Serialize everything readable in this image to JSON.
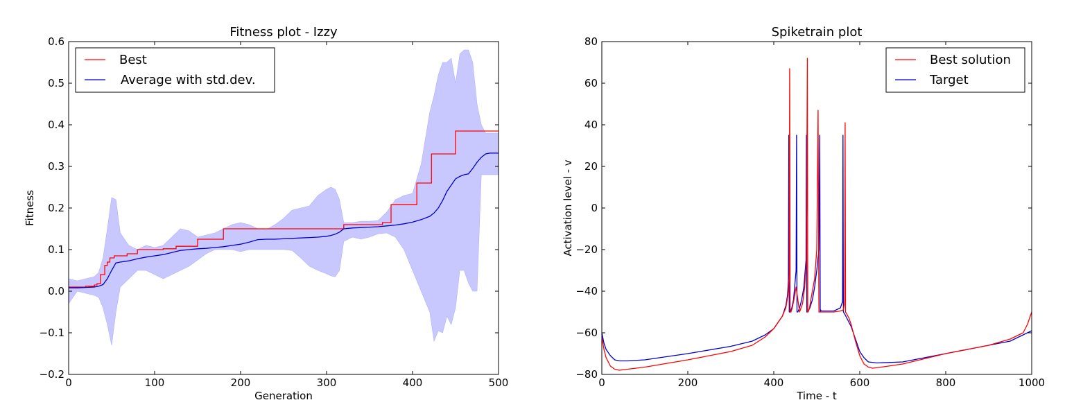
{
  "chart_data": [
    {
      "type": "line",
      "title": "Fitness plot - Izzy",
      "xlabel": "Generation",
      "ylabel": "Fitness",
      "xlim": [
        0,
        500
      ],
      "ylim": [
        -0.2,
        0.6
      ],
      "xticks": [
        "0",
        "100",
        "200",
        "300",
        "400",
        "500"
      ],
      "yticks": [
        "0.6",
        "0.5",
        "0.4",
        "0.3",
        "0.2",
        "0.1",
        "0.0",
        "−0.1",
        "−0.2"
      ],
      "grid": false,
      "legend_position": "top-left",
      "legend": [
        "Best",
        "Average with std.dev."
      ],
      "colors": {
        "best": "#ff0000",
        "average": "#0000cc",
        "band": "#c8c8ff"
      },
      "series": [
        {
          "name": "Best",
          "style": "step",
          "x": [
            0,
            20,
            30,
            33,
            37,
            42,
            45,
            48,
            53,
            57,
            62,
            68,
            72,
            80,
            100,
            110,
            115,
            125,
            130,
            150,
            180,
            320,
            365,
            375,
            405,
            422,
            450,
            500
          ],
          "values": [
            0.01,
            0.012,
            0.015,
            0.018,
            0.04,
            0.062,
            0.07,
            0.08,
            0.085,
            0.085,
            0.085,
            0.09,
            0.09,
            0.1,
            0.1,
            0.102,
            0.102,
            0.108,
            0.108,
            0.125,
            0.15,
            0.16,
            0.165,
            0.208,
            0.26,
            0.33,
            0.385,
            0.385
          ]
        },
        {
          "name": "Average with std.dev.",
          "x": [
            0,
            10,
            20,
            30,
            35,
            40,
            45,
            50,
            55,
            60,
            70,
            80,
            90,
            100,
            110,
            120,
            130,
            140,
            150,
            160,
            170,
            180,
            190,
            200,
            210,
            220,
            230,
            240,
            250,
            260,
            270,
            280,
            290,
            300,
            305,
            310,
            315,
            320,
            330,
            340,
            350,
            360,
            370,
            380,
            390,
            400,
            410,
            420,
            425,
            430,
            435,
            440,
            445,
            450,
            455,
            460,
            465,
            470,
            475,
            480,
            485,
            490,
            500
          ],
          "values": [
            0.008,
            0.008,
            0.009,
            0.01,
            0.012,
            0.016,
            0.03,
            0.05,
            0.068,
            0.07,
            0.073,
            0.078,
            0.082,
            0.085,
            0.088,
            0.093,
            0.098,
            0.1,
            0.102,
            0.103,
            0.105,
            0.107,
            0.11,
            0.113,
            0.118,
            0.124,
            0.125,
            0.125,
            0.126,
            0.127,
            0.128,
            0.129,
            0.13,
            0.132,
            0.134,
            0.137,
            0.142,
            0.15,
            0.152,
            0.153,
            0.154,
            0.155,
            0.157,
            0.159,
            0.162,
            0.166,
            0.172,
            0.18,
            0.188,
            0.2,
            0.218,
            0.24,
            0.255,
            0.27,
            0.276,
            0.28,
            0.282,
            0.295,
            0.31,
            0.322,
            0.33,
            0.332,
            0.332
          ],
          "upper": [
            0.03,
            0.025,
            0.03,
            0.035,
            0.045,
            0.08,
            0.15,
            0.225,
            0.22,
            0.14,
            0.11,
            0.1,
            0.11,
            0.105,
            0.11,
            0.13,
            0.15,
            0.145,
            0.13,
            0.135,
            0.14,
            0.15,
            0.16,
            0.165,
            0.16,
            0.15,
            0.148,
            0.16,
            0.175,
            0.195,
            0.2,
            0.205,
            0.23,
            0.245,
            0.25,
            0.245,
            0.22,
            0.165,
            0.165,
            0.168,
            0.168,
            0.17,
            0.19,
            0.22,
            0.23,
            0.235,
            0.305,
            0.43,
            0.47,
            0.52,
            0.55,
            0.55,
            0.56,
            0.5,
            0.57,
            0.58,
            0.58,
            0.55,
            0.45,
            0.4,
            0.38,
            0.38,
            0.38
          ],
          "lower": [
            -0.03,
            0.0,
            -0.005,
            -0.01,
            -0.015,
            -0.04,
            -0.08,
            -0.13,
            -0.05,
            0.01,
            0.03,
            0.05,
            0.05,
            0.04,
            0.03,
            0.04,
            0.05,
            0.06,
            0.075,
            0.09,
            0.1,
            0.1,
            0.1,
            0.095,
            0.1,
            0.1,
            0.1,
            0.1,
            0.1,
            0.098,
            0.08,
            0.06,
            0.05,
            0.042,
            0.037,
            0.035,
            0.05,
            0.12,
            0.13,
            0.125,
            0.13,
            0.138,
            0.14,
            0.13,
            0.1,
            0.05,
            0.0,
            -0.05,
            -0.12,
            -0.095,
            -0.1,
            -0.06,
            -0.08,
            -0.04,
            0.05,
            0.05,
            0.02,
            0.0,
            0.0,
            0.28,
            0.28,
            0.28,
            0.28
          ]
        }
      ]
    },
    {
      "type": "line",
      "title": "Spiketrain plot",
      "xlabel": "Time - t",
      "ylabel": "Activation level - v",
      "xlim": [
        0,
        1000
      ],
      "ylim": [
        -80,
        80
      ],
      "xticks": [
        "0",
        "200",
        "400",
        "600",
        "800",
        "1000"
      ],
      "yticks": [
        "80",
        "60",
        "40",
        "20",
        "0",
        "−20",
        "−40",
        "−60",
        "−80"
      ],
      "grid": false,
      "legend_position": "top-right",
      "legend": [
        "Best solution",
        "Target"
      ],
      "colors": {
        "best": "#ff0000",
        "target": "#0000cc"
      },
      "series": [
        {
          "name": "Best solution",
          "x": [
            0,
            5,
            10,
            20,
            30,
            40,
            60,
            100,
            200,
            300,
            350,
            380,
            400,
            410,
            420,
            428,
            433,
            436,
            437,
            438,
            440,
            443,
            447,
            452,
            460,
            467,
            472,
            476,
            478,
            479,
            480,
            483,
            488,
            495,
            500,
            503,
            505,
            506,
            507,
            510,
            520,
            540,
            555,
            562,
            565,
            566,
            567,
            570,
            575,
            580,
            590,
            600,
            610,
            620,
            630,
            650,
            700,
            800,
            900,
            950,
            980,
            990,
            1000
          ],
          "values": [
            -62,
            -68,
            -72,
            -76,
            -77.5,
            -78,
            -77.5,
            -76.5,
            -73,
            -69,
            -66,
            -62,
            -58,
            -55,
            -52,
            -48,
            -42,
            -32,
            67,
            -50,
            -50,
            -48,
            -44,
            -38,
            -50,
            -46,
            -38,
            -25,
            72,
            -50,
            -50,
            -48,
            -42,
            -34,
            -20,
            47,
            -50,
            -50,
            -50,
            -50,
            -50,
            -50,
            -49.5,
            -49,
            -45,
            41,
            -50,
            -51,
            -53,
            -56,
            -64,
            -71,
            -75,
            -76.5,
            -77,
            -76.5,
            -75,
            -70,
            -66,
            -63,
            -60,
            -56,
            -50
          ]
        },
        {
          "name": "Target",
          "x": [
            0,
            5,
            10,
            20,
            30,
            40,
            60,
            100,
            200,
            300,
            350,
            380,
            400,
            410,
            420,
            428,
            432,
            434,
            435,
            436,
            438,
            442,
            446,
            452,
            453,
            454,
            456,
            460,
            465,
            470,
            475,
            476,
            477,
            479,
            484,
            490,
            495,
            500,
            505,
            507,
            508,
            509,
            510,
            520,
            540,
            555,
            560,
            561,
            562,
            565,
            570,
            580,
            590,
            600,
            610,
            620,
            640,
            700,
            800,
            900,
            950,
            990,
            1000
          ],
          "values": [
            -60,
            -65,
            -68,
            -71,
            -73,
            -73.5,
            -73.5,
            -73,
            -70,
            -66.5,
            -64,
            -61,
            -58,
            -55,
            -52,
            -47,
            -42,
            -35,
            35,
            -50,
            -50,
            -48,
            -44,
            -30,
            35,
            -50,
            -50,
            -48,
            -44,
            -38,
            -25,
            35,
            -50,
            -50,
            -48,
            -44,
            -38,
            -30,
            -20,
            35,
            -50,
            -49,
            -49.5,
            -49.5,
            -49.5,
            -48,
            -45,
            35,
            -50,
            -51,
            -53,
            -57,
            -63,
            -69,
            -72,
            -74,
            -74.5,
            -74,
            -70,
            -66,
            -64,
            -60,
            -59
          ]
        }
      ]
    }
  ]
}
